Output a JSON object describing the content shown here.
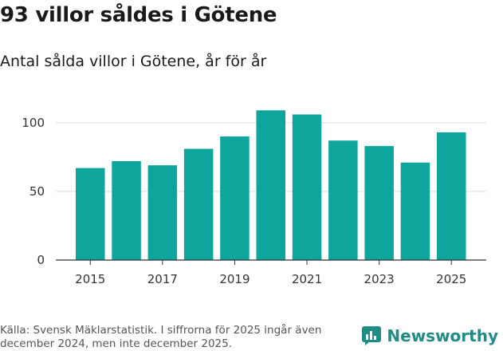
{
  "header": {
    "title": "93 villor såldes i Götene",
    "subtitle": "Antal sålda villor i Götene, år för år"
  },
  "footer": {
    "source": "Källa: Svensk Mäklarstatistik. I siffrorna för 2025 ingår även december 2024, men inte december 2025.",
    "brand": "Newsworthy"
  },
  "colors": {
    "bar": "#0ea59c",
    "grid": "#dddddd",
    "axis": "#333333",
    "brand": "#1f8c86"
  },
  "chart_data": {
    "type": "bar",
    "title": "93 villor såldes i Götene",
    "subtitle": "Antal sålda villor i Götene, år för år",
    "xlabel": "",
    "ylabel": "",
    "categories": [
      "2015",
      "2016",
      "2017",
      "2018",
      "2019",
      "2020",
      "2021",
      "2022",
      "2023",
      "2024",
      "2025"
    ],
    "values": [
      67,
      72,
      69,
      81,
      90,
      109,
      106,
      87,
      83,
      71,
      93
    ],
    "x_tick_labels": [
      "2015",
      "2017",
      "2019",
      "2021",
      "2023",
      "2025"
    ],
    "y_ticks": [
      0,
      50,
      100
    ],
    "ylim": [
      0,
      115
    ],
    "grid": true
  }
}
